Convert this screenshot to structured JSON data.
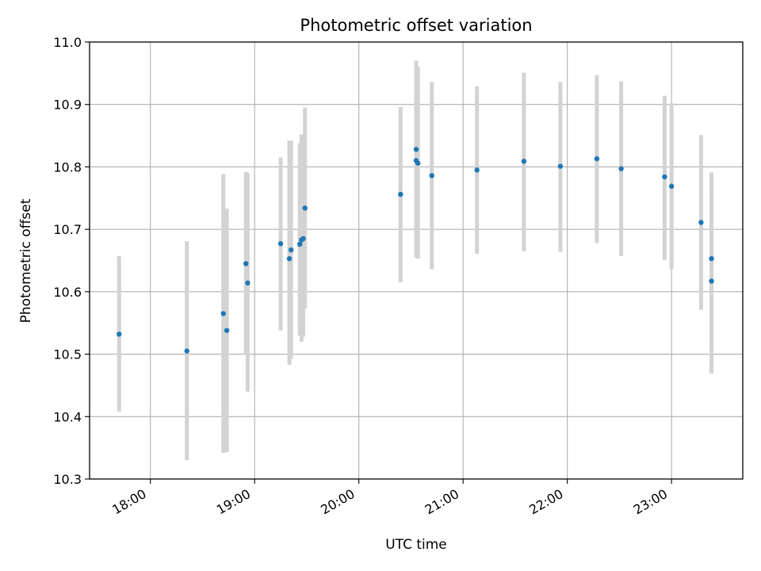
{
  "chart_data": {
    "type": "scatter",
    "title": "Photometric offset variation",
    "xlabel": "UTC time",
    "ylabel": "Photometric offset",
    "xlim": [
      "17:25",
      "23:41"
    ],
    "ylim": [
      10.3,
      11.0
    ],
    "x_ticks": [
      "18:00",
      "19:00",
      "20:00",
      "21:00",
      "22:00",
      "23:00"
    ],
    "y_ticks": [
      "10.3",
      "10.4",
      "10.5",
      "10.6",
      "10.7",
      "10.8",
      "10.9",
      "11.0"
    ],
    "grid": true,
    "error_bar_color": "#d3d3d3",
    "marker_color": "#1f77b4",
    "series": [
      {
        "points": [
          {
            "t": "17:42",
            "y": 10.532,
            "low": 10.408,
            "high": 10.657
          },
          {
            "t": "18:21",
            "y": 10.505,
            "low": 10.33,
            "high": 10.681
          },
          {
            "t": "18:42",
            "y": 10.565,
            "low": 10.342,
            "high": 10.788
          },
          {
            "t": "18:44",
            "y": 10.538,
            "low": 10.343,
            "high": 10.733
          },
          {
            "t": "18:55",
            "y": 10.645,
            "low": 10.499,
            "high": 10.792
          },
          {
            "t": "18:56",
            "y": 10.614,
            "low": 10.44,
            "high": 10.79
          },
          {
            "t": "19:15",
            "y": 10.677,
            "low": 10.538,
            "high": 10.815
          },
          {
            "t": "19:20",
            "y": 10.653,
            "low": 10.483,
            "high": 10.842
          },
          {
            "t": "19:21",
            "y": 10.667,
            "low": 10.493,
            "high": 10.842
          },
          {
            "t": "19:26",
            "y": 10.676,
            "low": 10.53,
            "high": 10.838
          },
          {
            "t": "19:27",
            "y": 10.683,
            "low": 10.52,
            "high": 10.852
          },
          {
            "t": "19:28",
            "y": 10.685,
            "low": 10.528,
            "high": 10.852
          },
          {
            "t": "19:29",
            "y": 10.734,
            "low": 10.573,
            "high": 10.895
          },
          {
            "t": "20:24",
            "y": 10.756,
            "low": 10.615,
            "high": 10.896
          },
          {
            "t": "20:33",
            "y": 10.828,
            "low": 10.688,
            "high": 10.97
          },
          {
            "t": "20:33",
            "y": 10.81,
            "low": 10.655,
            "high": 10.965
          },
          {
            "t": "20:34",
            "y": 10.806,
            "low": 10.653,
            "high": 10.96
          },
          {
            "t": "20:42",
            "y": 10.786,
            "low": 10.636,
            "high": 10.936
          },
          {
            "t": "21:08",
            "y": 10.795,
            "low": 10.661,
            "high": 10.929
          },
          {
            "t": "21:35",
            "y": 10.809,
            "low": 10.665,
            "high": 10.951
          },
          {
            "t": "21:56",
            "y": 10.801,
            "low": 10.664,
            "high": 10.936
          },
          {
            "t": "22:17",
            "y": 10.813,
            "low": 10.678,
            "high": 10.947
          },
          {
            "t": "22:31",
            "y": 10.797,
            "low": 10.657,
            "high": 10.937
          },
          {
            "t": "22:56",
            "y": 10.784,
            "low": 10.651,
            "high": 10.914
          },
          {
            "t": "23:00",
            "y": 10.769,
            "low": 10.636,
            "high": 10.902
          },
          {
            "t": "23:17",
            "y": 10.711,
            "low": 10.571,
            "high": 10.851
          },
          {
            "t": "23:23",
            "y": 10.653,
            "low": 10.515,
            "high": 10.791
          },
          {
            "t": "23:23",
            "y": 10.617,
            "low": 10.469,
            "high": 10.765
          }
        ]
      }
    ]
  }
}
